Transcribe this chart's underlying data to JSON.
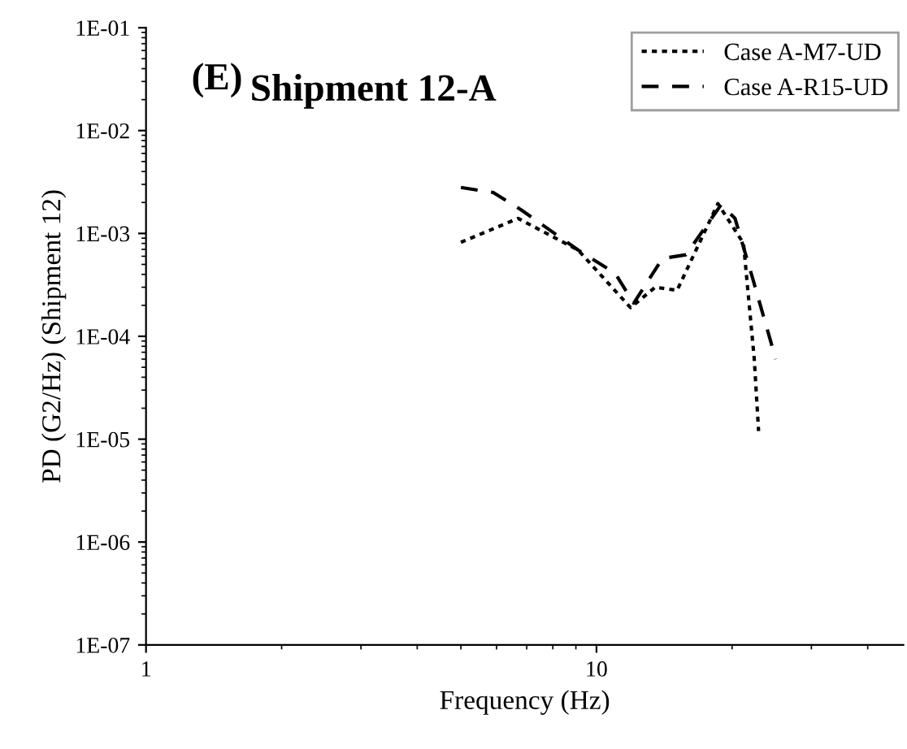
{
  "chart_data": {
    "type": "line",
    "title": "Shipment 12-A",
    "xlabel": "Frequency (Hz)",
    "ylabel": "PD (G2/Hz) (Shipment 12)",
    "annotations": [
      "(E)"
    ],
    "log": "xy",
    "grid": false,
    "legend": "top right",
    "xlim": [
      1,
      48
    ],
    "xticks": [
      1,
      10
    ],
    "ylim": [
      1e-07,
      0.1
    ],
    "yticks": [
      {
        "value": 1e-07,
        "label": "1E-07"
      },
      {
        "value": 1e-06,
        "label": "1E-06"
      },
      {
        "value": 1e-05,
        "label": "1E-05"
      },
      {
        "value": 0.0001,
        "label": "1E-04"
      },
      {
        "value": 0.001,
        "label": "1E-03"
      },
      {
        "value": 0.01,
        "label": "1E-02"
      },
      {
        "value": 0.1,
        "label": "1E-01"
      }
    ],
    "series": [
      {
        "name": "Case A-M7-UD",
        "color": "#000000",
        "line_style": "dotted",
        "x": [
          5,
          6.7,
          9.1,
          11.9,
          13.5,
          15.1,
          18.6,
          21.2,
          22.4,
          22.9
        ],
        "values": [
          0.00082,
          0.0014,
          0.00069,
          0.00019,
          0.0003,
          0.00028,
          0.00195,
          0.0008,
          6e-05,
          1.2e-05
        ]
      },
      {
        "name": "Case A-R15-UD",
        "color": "#000000",
        "line_style": "dashed",
        "x": [
          5,
          5.9,
          6.8,
          9.1,
          11,
          12.1,
          14,
          15.8,
          18.9,
          20.3,
          22.2,
          25
        ],
        "values": [
          0.0028,
          0.0025,
          0.0017,
          0.00069,
          0.00041,
          0.00021,
          0.00057,
          0.00062,
          0.0019,
          0.0014,
          0.00037,
          6e-05
        ]
      }
    ]
  }
}
